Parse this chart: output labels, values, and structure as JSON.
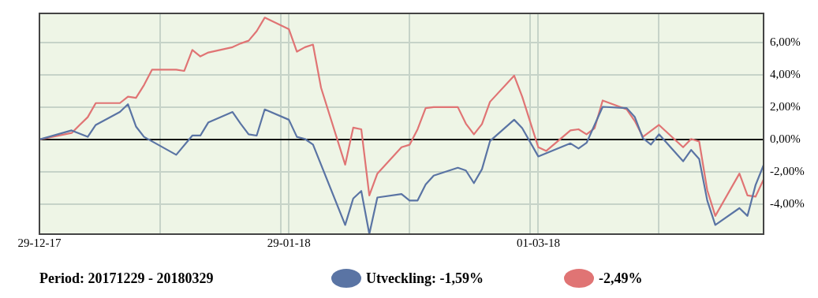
{
  "chart_data": {
    "type": "line",
    "series": [
      {
        "name": "Utveckling: -1,59%",
        "color": "#5a74a4",
        "x": [
          "2017-12-29",
          "2018-01-02",
          "2018-01-04",
          "2018-01-05",
          "2018-01-08",
          "2018-01-09",
          "2018-01-10",
          "2018-01-11",
          "2018-01-15",
          "2018-01-17",
          "2018-01-18",
          "2018-01-19",
          "2018-01-22",
          "2018-01-23",
          "2018-01-24",
          "2018-01-25",
          "2018-01-26",
          "2018-01-29",
          "2018-01-30",
          "2018-01-31",
          "2018-02-01",
          "2018-02-05",
          "2018-02-06",
          "2018-02-07",
          "2018-02-08",
          "2018-02-09",
          "2018-02-12",
          "2018-02-13",
          "2018-02-14",
          "2018-02-15",
          "2018-02-16",
          "2018-02-19",
          "2018-02-20",
          "2018-02-21",
          "2018-02-22",
          "2018-02-23",
          "2018-02-26",
          "2018-02-27",
          "2018-03-01",
          "2018-03-05",
          "2018-03-06",
          "2018-03-07",
          "2018-03-09",
          "2018-03-12",
          "2018-03-13",
          "2018-03-14",
          "2018-03-15",
          "2018-03-16",
          "2018-03-19",
          "2018-03-20",
          "2018-03-21",
          "2018-03-22",
          "2018-03-23",
          "2018-03-26",
          "2018-03-27",
          "2018-03-28",
          "2018-03-29"
        ],
        "values": [
          0,
          0.56,
          0.16,
          0.9,
          1.7,
          2.18,
          0.8,
          0.16,
          -0.95,
          0.24,
          0.24,
          1.06,
          1.7,
          0.98,
          0.32,
          0.24,
          1.86,
          1.22,
          0.16,
          0.03,
          -0.32,
          -5.29,
          -3.65,
          -3.19,
          -5.85,
          -3.59,
          -3.38,
          -3.78,
          -3.78,
          -2.79,
          -2.24,
          -1.75,
          -1.92,
          -2.7,
          -1.84,
          -0.1,
          1.22,
          0.7,
          -1.05,
          -0.24,
          -0.56,
          -0.21,
          2.02,
          1.94,
          1.38,
          0.08,
          -0.32,
          0.32,
          -1.35,
          -0.65,
          -1.21,
          -3.78,
          -5.29,
          -4.25,
          -4.73,
          -2.83,
          -1.59
        ]
      },
      {
        "color": "#e07474",
        "x": [
          "2017-12-29",
          "2018-01-02",
          "2018-01-03",
          "2018-01-04",
          "2018-01-05",
          "2018-01-08",
          "2018-01-09",
          "2018-01-10",
          "2018-01-11",
          "2018-01-12",
          "2018-01-15",
          "2018-01-16",
          "2018-01-17",
          "2018-01-18",
          "2018-01-19",
          "2018-01-22",
          "2018-01-23",
          "2018-01-24",
          "2018-01-25",
          "2018-01-26",
          "2018-01-29",
          "2018-01-30",
          "2018-01-31",
          "2018-02-01",
          "2018-02-02",
          "2018-02-05",
          "2018-02-06",
          "2018-02-07",
          "2018-02-08",
          "2018-02-09",
          "2018-02-12",
          "2018-02-13",
          "2018-02-14",
          "2018-02-15",
          "2018-02-16",
          "2018-02-19",
          "2018-02-20",
          "2018-02-21",
          "2018-02-22",
          "2018-02-23",
          "2018-02-26",
          "2018-02-27",
          "2018-03-01",
          "2018-03-02",
          "2018-03-05",
          "2018-03-06",
          "2018-03-07",
          "2018-03-08",
          "2018-03-09",
          "2018-03-12",
          "2018-03-13",
          "2018-03-14",
          "2018-03-16",
          "2018-03-19",
          "2018-03-20",
          "2018-03-21",
          "2018-03-22",
          "2018-03-23",
          "2018-03-26",
          "2018-03-27",
          "2018-03-28",
          "2018-03-29"
        ],
        "values": [
          0,
          0.4,
          0.9,
          1.38,
          2.25,
          2.25,
          2.65,
          2.57,
          3.37,
          4.32,
          4.32,
          4.24,
          5.54,
          5.14,
          5.38,
          5.71,
          5.94,
          6.11,
          6.7,
          7.54,
          6.83,
          5.43,
          5.71,
          5.87,
          3.2,
          -1.56,
          0.73,
          0.63,
          -3.46,
          -2.11,
          -0.48,
          -0.33,
          0.63,
          1.94,
          2.0,
          2.0,
          0.98,
          0.32,
          0.95,
          2.33,
          3.95,
          2.65,
          -0.48,
          -0.71,
          0.56,
          0.63,
          0.32,
          0.7,
          2.41,
          1.86,
          1.14,
          0.16,
          0.9,
          -0.48,
          0.03,
          -0.13,
          -3.14,
          -4.73,
          -2.11,
          -3.46,
          -3.54,
          -2.48
        ]
      }
    ],
    "xlim": [
      "2017-12-29",
      "2018-03-29"
    ],
    "xticks": [
      {
        "value": "2017-12-29",
        "label": "29-12-17"
      },
      {
        "value": "2018-01-13",
        "label": null
      },
      {
        "value": "2018-01-28",
        "label": null
      },
      {
        "value": "2018-01-29",
        "label": "29-01-18"
      },
      {
        "value": "2018-02-13",
        "label": null
      },
      {
        "value": "2018-02-28",
        "label": null
      },
      {
        "value": "2018-03-01",
        "label": "01-03-18"
      },
      {
        "value": "2018-03-16",
        "label": null
      },
      {
        "value": "2018-03-29",
        "label": null
      }
    ],
    "ylim": [
      -5.86,
      7.8
    ],
    "yticks": [
      {
        "value": -4,
        "label": "-4,00%"
      },
      {
        "value": -2,
        "label": "-2,00%"
      },
      {
        "value": 0,
        "label": "0,00%"
      },
      {
        "value": 2,
        "label": "2,00%"
      },
      {
        "value": 4,
        "label": "4,00%"
      },
      {
        "value": 6,
        "label": "6,00%"
      }
    ],
    "grid": true,
    "legend": "bottom",
    "marker": "none",
    "line_style": "solid",
    "annotations": [
      "Period: 20171229 - 20180329",
      "-2,49%"
    ]
  }
}
